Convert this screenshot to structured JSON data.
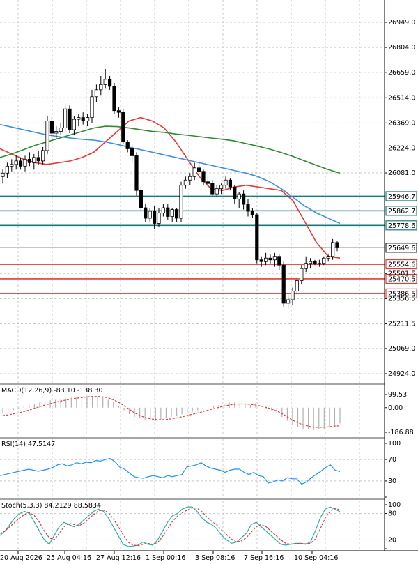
{
  "chart_data": {
    "type": "candlestick",
    "price_axis": {
      "ticks": [
        "26949.0",
        "26804.0",
        "26659.0",
        "26514.0",
        "26369.0",
        "26224.0",
        "26081.0",
        "25501.5",
        "25356.5",
        "25211.5",
        "25069.0",
        "24924.0"
      ],
      "ylim": [
        24924,
        26949
      ]
    },
    "time_axis": [
      "20 Aug 2026",
      "25 Aug 04:16",
      "27 Aug 12:16",
      "1 Sep 00:16",
      "3 Sep 08:16",
      "7 Sep 16:16",
      "10 Sep 04:16"
    ],
    "levels": [
      {
        "value": 25946.7,
        "label": "25946.7",
        "color": "#1a7a7a"
      },
      {
        "value": 25862.7,
        "label": "25862.7",
        "color": "#1a7a7a"
      },
      {
        "value": 25778.6,
        "label": "25778.6",
        "color": "#1a7a7a"
      },
      {
        "value": 25554.6,
        "label": "25554.6",
        "color": "#e53935"
      },
      {
        "value": 25470.5,
        "label": "25470.5",
        "color": "#e53935"
      },
      {
        "value": 25386.5,
        "label": "25386.5",
        "color": "#e53935"
      }
    ],
    "current_price": {
      "value": 25649.6,
      "label": "25649.6"
    },
    "candles": [
      [
        26060,
        26100,
        26020,
        26080
      ],
      [
        26080,
        26140,
        26050,
        26120
      ],
      [
        26120,
        26160,
        26090,
        26130
      ],
      [
        26130,
        26180,
        26100,
        26150
      ],
      [
        26150,
        26170,
        26100,
        26120
      ],
      [
        26120,
        26180,
        26090,
        26160
      ],
      [
        26160,
        26200,
        26120,
        26140
      ],
      [
        26140,
        26190,
        26100,
        26170
      ],
      [
        26170,
        26210,
        26130,
        26150
      ],
      [
        26150,
        26230,
        26130,
        26210
      ],
      [
        26210,
        26410,
        26190,
        26380
      ],
      [
        26380,
        26400,
        26290,
        26310
      ],
      [
        26310,
        26350,
        26280,
        26320
      ],
      [
        26320,
        26370,
        26300,
        26340
      ],
      [
        26340,
        26480,
        26320,
        26450
      ],
      [
        26450,
        26470,
        26310,
        26330
      ],
      [
        26330,
        26410,
        26300,
        26390
      ],
      [
        26390,
        26420,
        26350,
        26400
      ],
      [
        26400,
        26430,
        26360,
        26380
      ],
      [
        26380,
        26420,
        26350,
        26400
      ],
      [
        26400,
        26560,
        26370,
        26520
      ],
      [
        26520,
        26590,
        26490,
        26560
      ],
      [
        26560,
        26640,
        26530,
        26590
      ],
      [
        26590,
        26680,
        26570,
        26620
      ],
      [
        26620,
        26640,
        26560,
        26580
      ],
      [
        26580,
        26600,
        26420,
        26440
      ],
      [
        26440,
        26460,
        26400,
        26430
      ],
      [
        26430,
        26450,
        26250,
        26260
      ],
      [
        26260,
        26270,
        26200,
        26220
      ],
      [
        26220,
        26240,
        26140,
        26180
      ],
      [
        26180,
        26200,
        25950,
        25980
      ],
      [
        25980,
        26000,
        25860,
        25880
      ],
      [
        25880,
        25900,
        25800,
        25820
      ],
      [
        25820,
        25880,
        25800,
        25860
      ],
      [
        25860,
        25890,
        25760,
        25790
      ],
      [
        25790,
        25880,
        25770,
        25850
      ],
      [
        25850,
        25900,
        25830,
        25880
      ],
      [
        25880,
        25900,
        25810,
        25830
      ],
      [
        25830,
        25880,
        25800,
        25870
      ],
      [
        25870,
        25880,
        25800,
        25820
      ],
      [
        25820,
        26030,
        25800,
        26010
      ],
      [
        26010,
        26060,
        25990,
        26040
      ],
      [
        26040,
        26080,
        26010,
        26060
      ],
      [
        26060,
        26140,
        26040,
        26110
      ],
      [
        26110,
        26150,
        26070,
        26090
      ],
      [
        26090,
        26100,
        26010,
        26030
      ],
      [
        26030,
        26060,
        26000,
        26020
      ],
      [
        26020,
        26040,
        25950,
        25960
      ],
      [
        25960,
        26010,
        25940,
        25990
      ],
      [
        25990,
        26020,
        25960,
        26010
      ],
      [
        26010,
        26060,
        25990,
        26040
      ],
      [
        26040,
        26050,
        25980,
        26000
      ],
      [
        26000,
        26010,
        25900,
        25930
      ],
      [
        25930,
        25970,
        25880,
        25960
      ],
      [
        25960,
        25980,
        25870,
        25900
      ],
      [
        25900,
        25930,
        25830,
        25860
      ],
      [
        25860,
        25880,
        25820,
        25840
      ],
      [
        25840,
        25850,
        25560,
        25580
      ],
      [
        25580,
        25600,
        25540,
        25570
      ],
      [
        25570,
        25620,
        25550,
        25590
      ],
      [
        25590,
        25610,
        25560,
        25580
      ],
      [
        25580,
        25620,
        25540,
        25600
      ],
      [
        25600,
        25610,
        25520,
        25550
      ],
      [
        25550,
        25570,
        25310,
        25330
      ],
      [
        25330,
        25380,
        25300,
        25350
      ],
      [
        25350,
        25420,
        25320,
        25400
      ],
      [
        25400,
        25480,
        25380,
        25460
      ],
      [
        25460,
        25550,
        25440,
        25530
      ],
      [
        25530,
        25600,
        25510,
        25560
      ],
      [
        25560,
        25590,
        25530,
        25570
      ],
      [
        25570,
        25580,
        25550,
        25560
      ],
      [
        25560,
        25580,
        25540,
        25560
      ],
      [
        25560,
        25600,
        25550,
        25590
      ],
      [
        25590,
        25610,
        25570,
        25600
      ],
      [
        25600,
        25700,
        25580,
        25680
      ],
      [
        25680,
        25690,
        25630,
        25649.6
      ]
    ],
    "moving_averages": [
      {
        "color": "#e53935",
        "values": [
          26220,
          26190,
          26160,
          26140,
          26130,
          26140,
          26150,
          26170,
          26200,
          26260,
          26320,
          26380,
          26400,
          26380,
          26340,
          26260,
          26160,
          26060,
          25990,
          25980,
          26000,
          26010,
          26000,
          25990,
          25980,
          25920,
          25800,
          25680,
          25600,
          25590
        ]
      },
      {
        "color": "#3d8ee6",
        "values": [
          26360,
          26345,
          26330,
          26315,
          26300,
          26290,
          26282,
          26275,
          26270,
          26260,
          26245,
          26230,
          26215,
          26200,
          26185,
          26170,
          26155,
          26140,
          26125,
          26110,
          26095,
          26080,
          26060,
          26030,
          25990,
          25940,
          25890,
          25850,
          25820,
          25790
        ]
      },
      {
        "color": "#2e8b2e",
        "values": [
          26170,
          26190,
          26215,
          26240,
          26260,
          26280,
          26300,
          26320,
          26340,
          26350,
          26348,
          26340,
          26330,
          26320,
          26315,
          26305,
          26298,
          26290,
          26282,
          26275,
          26265,
          26250,
          26235,
          26218,
          26198,
          26176,
          26150,
          26125,
          26100,
          26080
        ]
      }
    ],
    "macd": {
      "title": "MACD(12,26,9) -83.10 -138.30",
      "ticks": [
        "99.53",
        "0.00",
        "-186.88"
      ],
      "ylim": [
        -186.88,
        99.53
      ],
      "histogram": [
        -40,
        -30,
        -20,
        -5,
        10,
        20,
        30,
        40,
        50,
        55,
        60,
        65,
        70,
        75,
        80,
        85,
        90,
        90,
        85,
        80,
        60,
        40,
        10,
        -20,
        -50,
        -70,
        -80,
        -90,
        -95,
        -100,
        -90,
        -80,
        -70,
        -60,
        -50,
        -40,
        -30,
        -20,
        -10,
        0,
        10,
        20,
        30,
        40,
        40,
        35,
        30,
        20,
        10,
        0,
        -10,
        -20,
        -40,
        -70,
        -100,
        -130,
        -150,
        -160,
        -165,
        -170,
        -165,
        -160,
        -150,
        -140,
        -120
      ],
      "signal": [
        -60,
        -55,
        -48,
        -40,
        -30,
        -18,
        -5,
        8,
        20,
        30,
        40,
        50,
        58,
        66,
        72,
        78,
        82,
        85,
        85,
        82,
        75,
        60,
        40,
        15,
        -12,
        -40,
        -60,
        -75,
        -85,
        -90,
        -92,
        -90,
        -85,
        -78,
        -70,
        -60,
        -50,
        -40,
        -30,
        -18,
        -8,
        2,
        12,
        20,
        26,
        28,
        28,
        25,
        20,
        12,
        2,
        -10,
        -25,
        -45,
        -70,
        -95,
        -115,
        -130,
        -140,
        -148,
        -150,
        -148,
        -145,
        -140,
        -138
      ]
    },
    "rsi": {
      "title": "RSI(14) 47.5147",
      "ticks": [
        "100",
        "70",
        "30",
        "0"
      ],
      "ylim": [
        0,
        100
      ],
      "values": [
        40,
        42,
        44,
        46,
        48,
        50,
        52,
        50,
        48,
        50,
        52,
        55,
        60,
        62,
        58,
        60,
        64,
        62,
        65,
        64,
        68,
        67,
        70,
        72,
        66,
        56,
        52,
        45,
        38,
        36,
        35,
        38,
        40,
        38,
        36,
        40,
        38,
        40,
        42,
        56,
        58,
        60,
        64,
        58,
        54,
        52,
        50,
        46,
        50,
        52,
        52,
        46,
        42,
        46,
        40,
        38,
        26,
        28,
        32,
        30,
        36,
        34,
        34,
        24,
        28,
        36,
        42,
        48,
        55,
        60,
        50,
        47.5
      ]
    },
    "stoch": {
      "title": "Stoch(5,3,3) 84.2129 88.5834",
      "ticks": [
        "100",
        "80",
        "20",
        "0"
      ],
      "ylim": [
        0,
        100
      ],
      "k": [
        30,
        40,
        55,
        70,
        80,
        85,
        80,
        60,
        40,
        20,
        10,
        30,
        50,
        60,
        55,
        50,
        55,
        65,
        75,
        85,
        90,
        85,
        70,
        50,
        30,
        10,
        5,
        6,
        8,
        15,
        10,
        8,
        20,
        40,
        60,
        75,
        80,
        90,
        95,
        95,
        85,
        70,
        60,
        55,
        45,
        30,
        20,
        12,
        15,
        25,
        35,
        55,
        60,
        50,
        40,
        30,
        20,
        10,
        8,
        10,
        12,
        12,
        10,
        15,
        40,
        70,
        90,
        95,
        90,
        84.2
      ],
      "d": [
        35,
        40,
        50,
        60,
        70,
        78,
        82,
        75,
        60,
        40,
        25,
        20,
        35,
        50,
        58,
        55,
        52,
        58,
        68,
        78,
        86,
        88,
        82,
        68,
        50,
        32,
        15,
        8,
        7,
        10,
        12,
        10,
        14,
        28,
        45,
        62,
        74,
        82,
        88,
        93,
        92,
        84,
        72,
        62,
        54,
        42,
        32,
        22,
        15,
        18,
        25,
        38,
        50,
        55,
        50,
        40,
        30,
        20,
        12,
        10,
        11,
        12,
        11,
        12,
        22,
        45,
        70,
        85,
        92,
        88.6
      ]
    }
  }
}
